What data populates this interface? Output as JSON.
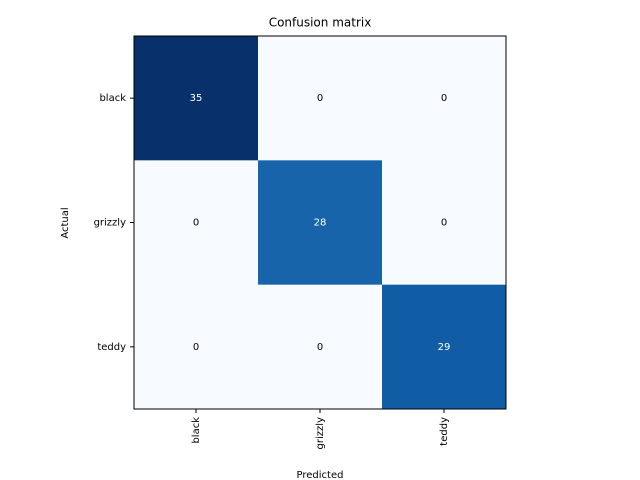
{
  "chart_data": {
    "type": "heatmap",
    "title": "Confusion matrix",
    "x_label": "Predicted",
    "y_label": "Actual",
    "x_categories": [
      "black",
      "grizzly",
      "teddy"
    ],
    "y_categories": [
      "black",
      "grizzly",
      "teddy"
    ],
    "values": [
      [
        35,
        0,
        0
      ],
      [
        0,
        28,
        0
      ],
      [
        0,
        0,
        29
      ]
    ],
    "colormap": [
      "#f7fbff",
      "#deebf7",
      "#c6dbef",
      "#9ecae1",
      "#6baed6",
      "#4292c6",
      "#2171b5",
      "#08519c",
      "#08306b"
    ]
  }
}
